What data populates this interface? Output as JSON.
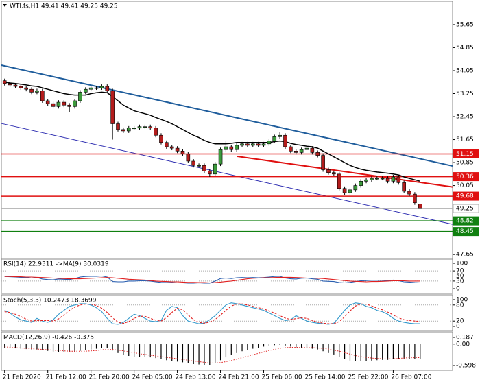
{
  "chart_data": [
    {
      "type": "candlestick",
      "title": "WTI.fs,H1  49.41 49.41 49.25 49.25",
      "categories": [
        "21 Feb 2020",
        null,
        null,
        null,
        null,
        null,
        null,
        null,
        "21 Feb 12:00",
        null,
        null,
        null,
        null,
        null,
        null,
        null,
        "21 Feb 20:00",
        null,
        null,
        null,
        null,
        null,
        null,
        null,
        "24 Feb 05:00",
        null,
        null,
        null,
        null,
        null,
        null,
        null,
        "24 Feb 13:00",
        null,
        null,
        null,
        null,
        null,
        null,
        null,
        "24 Feb 21:00",
        null,
        null,
        null,
        null,
        null,
        null,
        null,
        "25 Feb 06:00",
        null,
        null,
        null,
        null,
        null,
        null,
        null,
        "25 Feb 14:00",
        null,
        null,
        null,
        null,
        null,
        null,
        null,
        "25 Feb 22:00",
        null,
        null,
        null,
        null,
        null,
        null,
        null,
        "26 Feb 07:00",
        null,
        null,
        null,
        null,
        null
      ],
      "open": [
        53.7,
        53.6,
        53.55,
        53.5,
        53.45,
        53.4,
        53.3,
        53.35,
        53.0,
        52.9,
        52.8,
        52.95,
        52.85,
        52.8,
        53.0,
        53.3,
        53.4,
        53.45,
        53.45,
        53.5,
        53.35,
        52.2,
        52.0,
        51.95,
        52.05,
        52.05,
        52.1,
        52.1,
        52.05,
        51.8,
        51.55,
        51.4,
        51.35,
        51.25,
        51.15,
        50.9,
        50.75,
        50.75,
        50.55,
        50.45,
        50.8,
        51.3,
        51.4,
        51.3,
        51.45,
        51.5,
        51.45,
        51.5,
        51.45,
        51.5,
        51.6,
        51.75,
        51.8,
        51.4,
        51.25,
        51.2,
        51.3,
        51.35,
        51.2,
        51.1,
        50.6,
        50.5,
        50.45,
        49.95,
        49.8,
        49.9,
        50.05,
        50.2,
        50.25,
        50.3,
        50.3,
        50.3,
        50.2,
        50.35,
        50.15,
        49.85,
        49.75,
        49.41
      ],
      "high": [
        53.77,
        53.67,
        53.62,
        53.57,
        53.52,
        53.47,
        53.42,
        53.42,
        53.07,
        52.97,
        53.02,
        53.02,
        52.92,
        53.07,
        53.37,
        53.47,
        53.52,
        53.52,
        53.57,
        53.57,
        53.42,
        52.27,
        52.07,
        52.12,
        52.12,
        52.17,
        52.17,
        52.17,
        52.12,
        51.87,
        51.62,
        51.47,
        51.42,
        51.32,
        51.22,
        50.97,
        50.82,
        50.82,
        50.62,
        50.87,
        51.37,
        51.6,
        51.47,
        51.52,
        51.57,
        51.57,
        51.57,
        51.57,
        51.57,
        51.67,
        51.82,
        51.9,
        51.87,
        51.47,
        51.32,
        51.37,
        51.42,
        51.42,
        51.27,
        51.17,
        50.67,
        50.57,
        50.52,
        50.02,
        49.97,
        50.12,
        50.27,
        50.32,
        50.37,
        50.37,
        50.37,
        50.37,
        50.42,
        50.42,
        50.22,
        49.92,
        49.82,
        49.41
      ],
      "low": [
        53.53,
        53.48,
        53.43,
        53.38,
        53.33,
        53.23,
        53.23,
        52.93,
        52.83,
        52.73,
        52.73,
        52.78,
        52.6,
        52.73,
        52.93,
        53.23,
        53.33,
        53.38,
        53.38,
        53.28,
        51.65,
        51.93,
        51.88,
        51.88,
        51.98,
        51.98,
        52.03,
        51.98,
        51.73,
        51.48,
        51.33,
        51.28,
        51.18,
        51.08,
        50.83,
        50.68,
        50.68,
        50.48,
        50.35,
        50.38,
        50.73,
        51.23,
        51.23,
        51.23,
        51.38,
        51.38,
        51.38,
        51.38,
        51.38,
        51.43,
        51.53,
        51.68,
        51.33,
        51.18,
        51.13,
        51.13,
        51.23,
        51.13,
        51.03,
        50.53,
        50.43,
        50.38,
        49.88,
        49.73,
        49.73,
        49.83,
        49.98,
        50.13,
        50.18,
        50.23,
        50.23,
        50.13,
        50.13,
        50.08,
        49.78,
        49.68,
        49.38,
        49.25
      ],
      "close": [
        53.6,
        53.55,
        53.5,
        53.45,
        53.4,
        53.3,
        53.35,
        53.0,
        52.9,
        52.8,
        52.95,
        52.85,
        52.8,
        53.0,
        53.3,
        53.4,
        53.45,
        53.45,
        53.5,
        53.35,
        52.2,
        52.0,
        51.95,
        52.05,
        52.05,
        52.1,
        52.1,
        52.05,
        51.8,
        51.55,
        51.4,
        51.35,
        51.25,
        51.15,
        50.9,
        50.75,
        50.75,
        50.55,
        50.45,
        50.8,
        51.3,
        51.4,
        51.3,
        51.45,
        51.5,
        51.45,
        51.5,
        51.45,
        51.5,
        51.6,
        51.75,
        51.8,
        51.4,
        51.25,
        51.2,
        51.3,
        51.35,
        51.2,
        51.1,
        50.6,
        50.5,
        50.45,
        49.95,
        49.8,
        49.9,
        50.05,
        50.2,
        50.25,
        50.3,
        50.3,
        50.3,
        50.2,
        50.35,
        50.15,
        49.85,
        49.75,
        49.45,
        49.25
      ],
      "up_color": "#3c9a3c",
      "down_color": "#b31c1c",
      "lines": [
        {
          "color": "#000000",
          "values": [
            53.65,
            53.62,
            53.6,
            53.58,
            53.55,
            53.52,
            53.5,
            53.45,
            53.4,
            53.35,
            53.3,
            53.25,
            53.22,
            53.2,
            53.2,
            53.2,
            53.25,
            53.28,
            53.3,
            53.28,
            53.15,
            53.0,
            52.85,
            52.75,
            52.65,
            52.6,
            52.55,
            52.5,
            52.42,
            52.35,
            52.28,
            52.2,
            52.1,
            52.0,
            51.9,
            51.8,
            51.72,
            51.62,
            51.55,
            51.5,
            51.5,
            51.5,
            51.52,
            51.55,
            51.55,
            51.55,
            51.55,
            51.55,
            51.55,
            51.55,
            51.58,
            51.6,
            51.58,
            51.52,
            51.48,
            51.45,
            51.42,
            51.4,
            51.35,
            51.25,
            51.15,
            51.05,
            50.95,
            50.85,
            50.75,
            50.68,
            50.62,
            50.58,
            50.55,
            50.52,
            50.5,
            50.48,
            50.45,
            50.42,
            50.35,
            50.3,
            50.25,
            50.2
          ]
        }
      ],
      "trendlines": [
        {
          "color": "#1f5d9c",
          "width": 2,
          "x": [
            -0.6,
            83
          ],
          "y": [
            54.24,
            50.73
          ]
        },
        {
          "color": "#2b2bb0",
          "width": 1,
          "x": [
            -0.6,
            83
          ],
          "y": [
            52.21,
            48.7
          ]
        },
        {
          "color": "#e01010",
          "width": 2,
          "x": [
            43,
            83
          ],
          "y": [
            51.07,
            50.0
          ]
        }
      ],
      "levels": [
        {
          "value": 51.15,
          "color": "#e01010",
          "text_color": "#ffffff"
        },
        {
          "value": 50.36,
          "color": "#e01010",
          "text_color": "#ffffff"
        },
        {
          "value": 49.68,
          "color": "#e01010",
          "text_color": "#ffffff"
        },
        {
          "value": 49.25,
          "color": "#b0b0b0",
          "text_color": "#000000"
        },
        {
          "value": 48.82,
          "color": "#108010",
          "text_color": "#ffffff"
        },
        {
          "value": 48.45,
          "color": "#108010",
          "text_color": "#ffffff"
        }
      ],
      "xlim": [
        -0.6,
        83
      ],
      "ylim": [
        47.51,
        56.46
      ],
      "yticks": [
        47.65,
        48.45,
        49.25,
        50.05,
        50.85,
        51.65,
        52.45,
        53.25,
        54.05,
        54.85,
        55.65
      ]
    },
    {
      "type": "line",
      "title": "RSI(14) 22.9311 ->MA(9) 30.0319",
      "ylim": [
        0,
        100
      ],
      "yticks": [
        0,
        30,
        50,
        70,
        100
      ],
      "levels": [
        30,
        70
      ],
      "series": [
        {
          "color": "#2a5fb0",
          "values": [
            48,
            47,
            46,
            45,
            44,
            42,
            44,
            38,
            36,
            35,
            38,
            37,
            36,
            40,
            46,
            48,
            49,
            49,
            50,
            46,
            28,
            27,
            27,
            30,
            30,
            31,
            31,
            30,
            27,
            25,
            24,
            24,
            23,
            23,
            22,
            22,
            23,
            22,
            22,
            30,
            40,
            42,
            40,
            43,
            44,
            43,
            44,
            43,
            44,
            46,
            48,
            49,
            42,
            39,
            38,
            41,
            42,
            39,
            37,
            30,
            29,
            28,
            24,
            23,
            25,
            28,
            31,
            32,
            33,
            33,
            33,
            31,
            34,
            31,
            27,
            26,
            24,
            22.9311
          ]
        },
        {
          "color": "#e02020",
          "values": [
            48,
            48,
            47,
            47,
            46,
            46,
            45,
            44,
            43,
            42,
            41,
            40,
            39,
            39,
            39,
            40,
            41,
            42,
            43,
            44,
            43,
            41,
            39,
            37,
            36,
            35,
            34,
            32,
            30,
            29,
            28,
            27,
            27,
            26,
            25,
            25,
            24,
            24,
            23,
            24,
            26,
            28,
            30,
            33,
            36,
            39,
            41,
            42,
            43,
            43,
            44,
            45,
            45,
            45,
            44,
            43,
            42,
            42,
            41,
            40,
            38,
            36,
            34,
            32,
            30,
            29,
            28,
            27,
            28,
            28,
            29,
            30,
            31,
            31,
            31,
            30,
            30,
            30.0319
          ]
        }
      ]
    },
    {
      "type": "line",
      "title": "Stoch(5,3,3) 10.2473 18.3699",
      "ylim": [
        0,
        100
      ],
      "yticks": [
        0,
        20,
        80,
        100
      ],
      "levels": [
        20,
        80
      ],
      "series": [
        {
          "color": "#3399cc",
          "values": [
            60,
            50,
            35,
            25,
            20,
            15,
            30,
            20,
            15,
            25,
            45,
            60,
            75,
            80,
            85,
            85,
            80,
            70,
            55,
            30,
            10,
            8,
            15,
            30,
            45,
            40,
            30,
            20,
            18,
            22,
            60,
            75,
            70,
            40,
            20,
            15,
            10,
            12,
            25,
            40,
            60,
            80,
            88,
            85,
            80,
            75,
            70,
            65,
            60,
            50,
            40,
            30,
            22,
            25,
            40,
            30,
            20,
            15,
            12,
            10,
            8,
            12,
            35,
            60,
            80,
            88,
            85,
            75,
            70,
            60,
            55,
            45,
            30,
            20,
            15,
            12,
            10,
            10.2473
          ]
        },
        {
          "color": "#e02020",
          "dash": true,
          "values": [
            55,
            52,
            45,
            37,
            27,
            20,
            22,
            22,
            22,
            20,
            28,
            43,
            60,
            72,
            80,
            83,
            83,
            78,
            68,
            52,
            32,
            16,
            11,
            18,
            30,
            38,
            38,
            30,
            23,
            20,
            33,
            52,
            68,
            62,
            43,
            25,
            15,
            12,
            16,
            26,
            42,
            60,
            76,
            84,
            84,
            80,
            75,
            70,
            65,
            58,
            50,
            40,
            31,
            26,
            29,
            32,
            30,
            22,
            16,
            12,
            10,
            10,
            18,
            36,
            58,
            76,
            84,
            83,
            77,
            68,
            62,
            53,
            43,
            32,
            25,
            22,
            20,
            18.3699
          ]
        }
      ]
    },
    {
      "type": "macd",
      "title": "MACD(12,26,9) -0.426 -0.375",
      "ylim": [
        -0.598,
        0.187
      ],
      "yticks": [
        -0.598,
        {
          "value": 0,
          "label": "0.00"
        },
        0.187
      ],
      "series": [
        {
          "color": "#000000",
          "style": "bar",
          "values": [
            -0.1,
            -0.11,
            -0.12,
            -0.13,
            -0.14,
            -0.15,
            -0.15,
            -0.17,
            -0.19,
            -0.21,
            -0.22,
            -0.23,
            -0.23,
            -0.22,
            -0.19,
            -0.17,
            -0.15,
            -0.13,
            -0.11,
            -0.1,
            -0.18,
            -0.25,
            -0.3,
            -0.33,
            -0.35,
            -0.36,
            -0.36,
            -0.37,
            -0.39,
            -0.42,
            -0.45,
            -0.47,
            -0.49,
            -0.51,
            -0.54,
            -0.56,
            -0.57,
            -0.58,
            -0.58,
            -0.53,
            -0.45,
            -0.37,
            -0.31,
            -0.25,
            -0.2,
            -0.16,
            -0.13,
            -0.1,
            -0.07,
            -0.05,
            -0.03,
            -0.02,
            -0.04,
            -0.07,
            -0.09,
            -0.1,
            -0.11,
            -0.13,
            -0.15,
            -0.2,
            -0.25,
            -0.29,
            -0.36,
            -0.42,
            -0.46,
            -0.48,
            -0.48,
            -0.47,
            -0.46,
            -0.45,
            -0.44,
            -0.44,
            -0.42,
            -0.42,
            -0.42,
            -0.42,
            -0.42,
            -0.426
          ]
        },
        {
          "color": "#e02020",
          "style": "dotted",
          "values": [
            -0.08,
            -0.09,
            -0.1,
            -0.11,
            -0.12,
            -0.13,
            -0.14,
            -0.15,
            -0.16,
            -0.17,
            -0.18,
            -0.19,
            -0.2,
            -0.2,
            -0.2,
            -0.2,
            -0.19,
            -0.18,
            -0.16,
            -0.15,
            -0.15,
            -0.17,
            -0.19,
            -0.22,
            -0.24,
            -0.27,
            -0.29,
            -0.31,
            -0.33,
            -0.35,
            -0.37,
            -0.39,
            -0.41,
            -0.43,
            -0.45,
            -0.47,
            -0.49,
            -0.51,
            -0.53,
            -0.53,
            -0.52,
            -0.49,
            -0.46,
            -0.42,
            -0.38,
            -0.34,
            -0.3,
            -0.26,
            -0.22,
            -0.18,
            -0.15,
            -0.12,
            -0.1,
            -0.09,
            -0.09,
            -0.09,
            -0.1,
            -0.1,
            -0.11,
            -0.12,
            -0.14,
            -0.17,
            -0.2,
            -0.24,
            -0.28,
            -0.32,
            -0.35,
            -0.37,
            -0.39,
            -0.4,
            -0.41,
            -0.41,
            -0.41,
            -0.4,
            -0.39,
            -0.38,
            -0.38,
            -0.375
          ]
        }
      ]
    }
  ]
}
